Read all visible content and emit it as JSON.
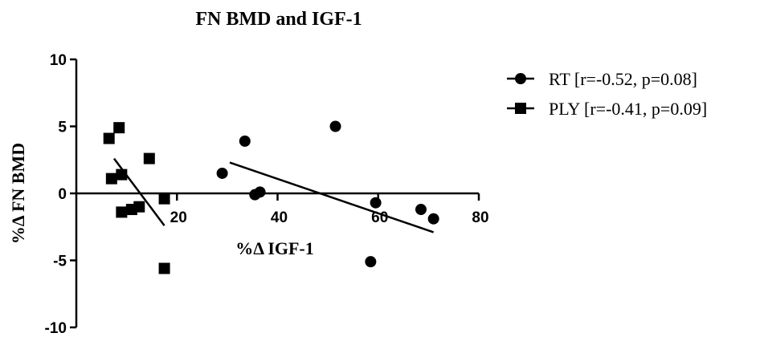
{
  "chart_data": {
    "type": "scatter",
    "title": "FN BMD and IGF-1",
    "xlabel": "%Δ IGF-1",
    "ylabel": "%Δ FN BMD",
    "xlim": [
      0,
      80
    ],
    "ylim": [
      -10,
      10
    ],
    "x_ticks": [
      "20",
      "40",
      "60",
      "80"
    ],
    "y_ticks": [
      "10",
      "5",
      "0",
      "-5",
      "-10"
    ],
    "grid": false,
    "legend_position": "right",
    "series": [
      {
        "name": "RT [r=-0.52, p=0.08]",
        "marker": "circle",
        "points": [
          [
            29,
            1.5
          ],
          [
            33.5,
            3.9
          ],
          [
            35.5,
            -0.1
          ],
          [
            36.5,
            0.1
          ],
          [
            51.5,
            5.0
          ],
          [
            58.5,
            -5.1
          ],
          [
            59.5,
            -0.7
          ],
          [
            68.5,
            -1.2
          ],
          [
            71,
            -1.9
          ]
        ],
        "trendline": [
          [
            30.5,
            2.3
          ],
          [
            71,
            -2.9
          ]
        ]
      },
      {
        "name": "PLY [r=-0.41, p=0.09]",
        "marker": "square",
        "points": [
          [
            6.5,
            4.1
          ],
          [
            8.5,
            4.9
          ],
          [
            7,
            1.1
          ],
          [
            9,
            1.4
          ],
          [
            9,
            -1.4
          ],
          [
            11,
            -1.2
          ],
          [
            12.5,
            -1.0
          ],
          [
            14.5,
            2.6
          ],
          [
            17.5,
            -0.4
          ],
          [
            17.5,
            -5.6
          ]
        ],
        "trendline": [
          [
            7.5,
            2.6
          ],
          [
            17.5,
            -2.4
          ]
        ]
      }
    ]
  }
}
